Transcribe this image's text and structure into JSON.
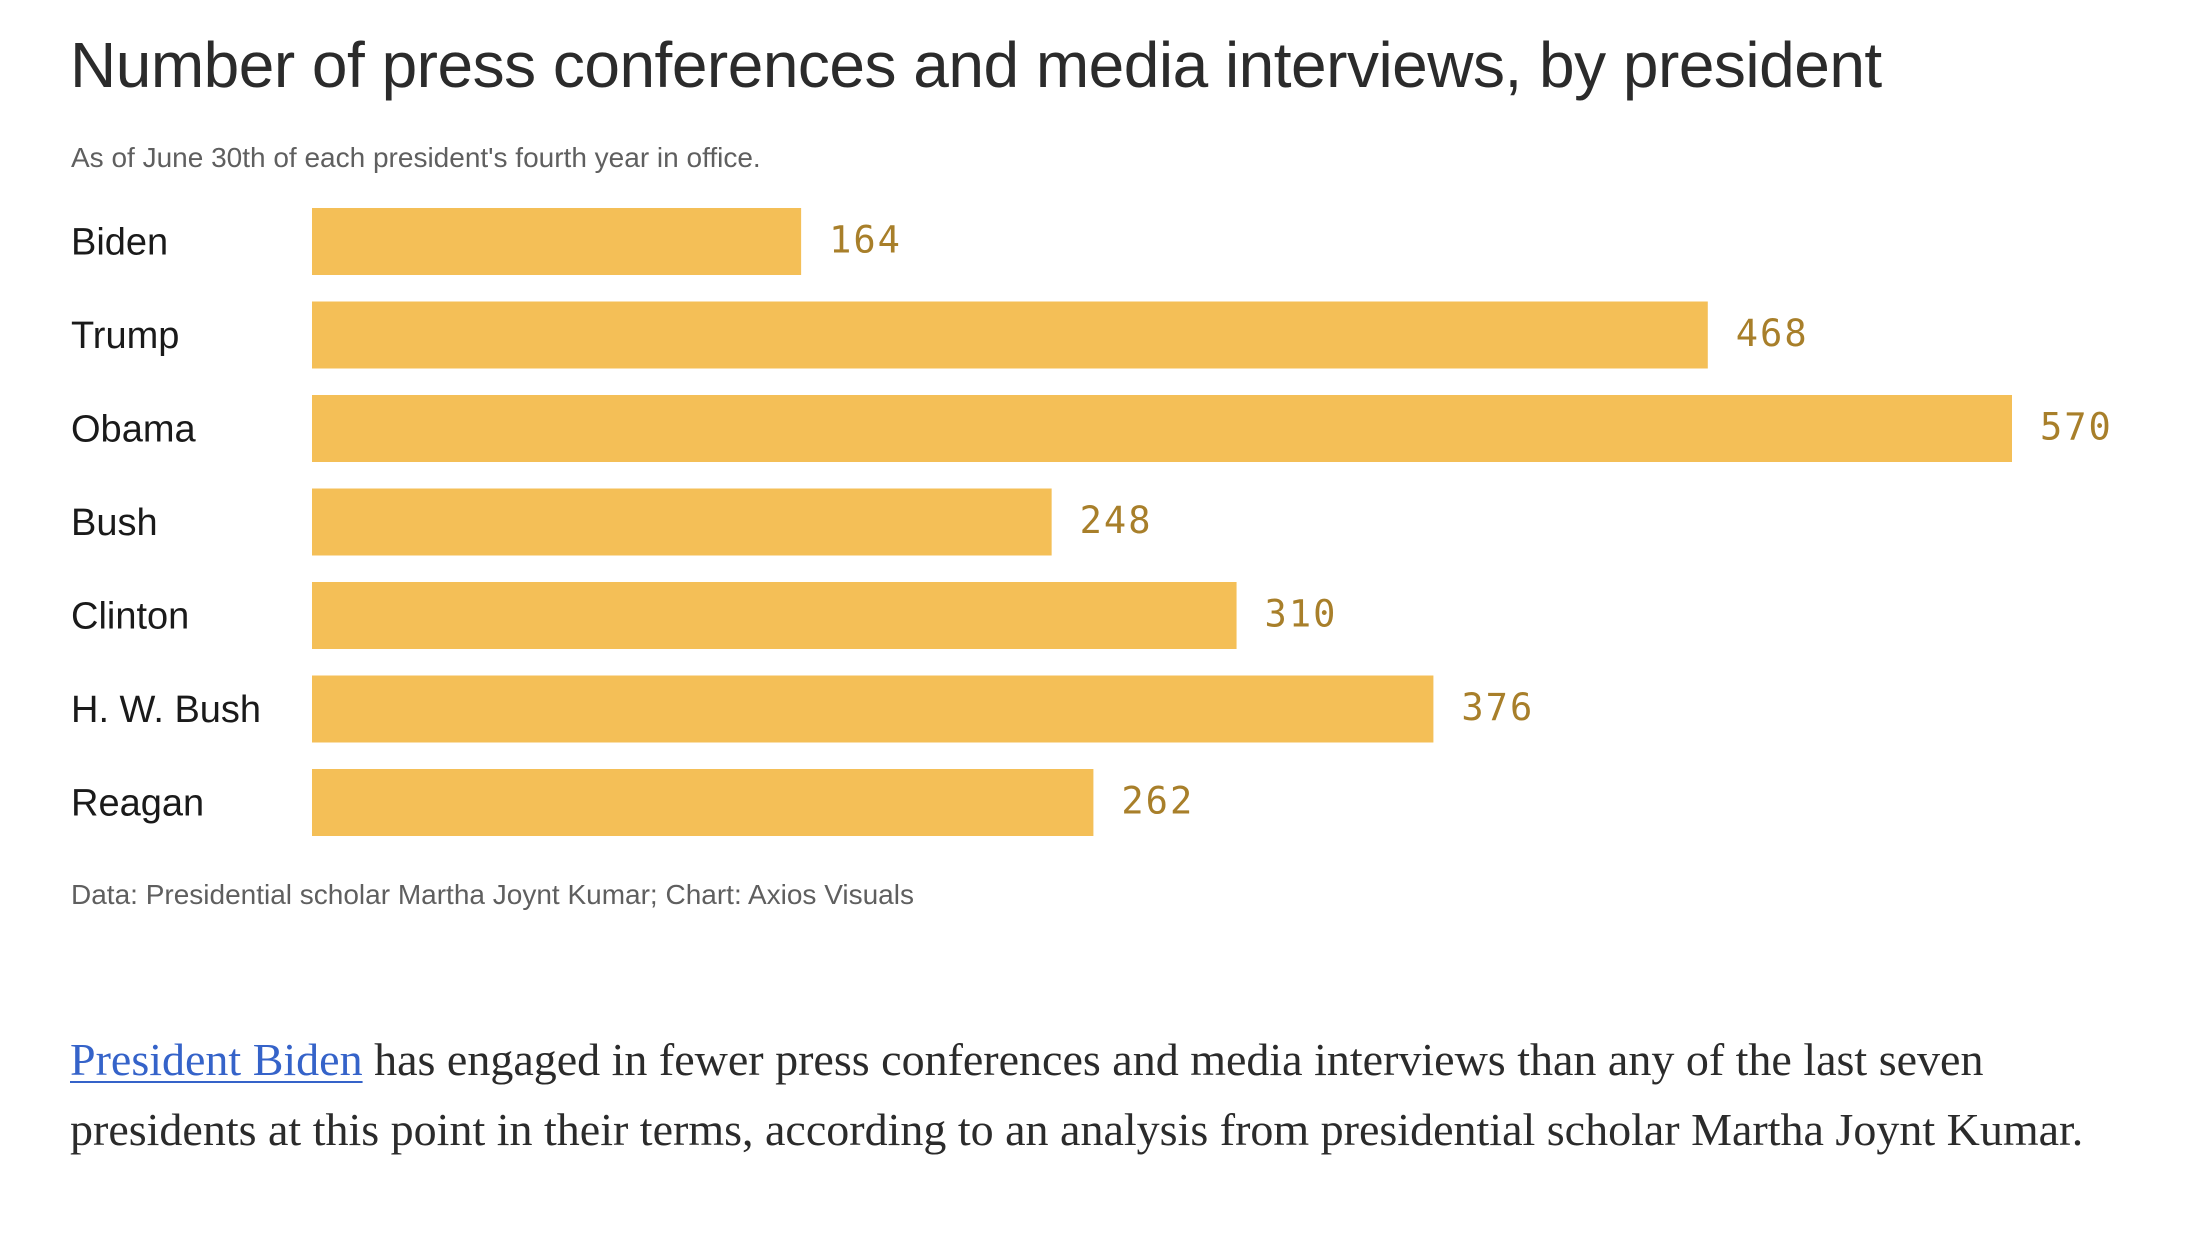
{
  "chart_data": {
    "type": "bar",
    "orientation": "horizontal",
    "title": "Number of press conferences and media interviews, by president",
    "subtitle": "As of June 30th of each president's fourth year in office.",
    "categories": [
      "Biden",
      "Trump",
      "Obama",
      "Bush",
      "Clinton",
      "H. W. Bush",
      "Reagan"
    ],
    "values": [
      164,
      468,
      570,
      248,
      310,
      376,
      262
    ],
    "xlim": [
      0,
      570
    ],
    "grid": false,
    "bar_color": "#f4bf57",
    "value_label_color": "#a87f2a",
    "source": "Data: Presidential scholar Martha Joynt Kumar; Chart: Axios Visuals"
  },
  "article": {
    "link_text": "President Biden",
    "body": " has engaged in fewer press conferences and media interviews than any of the last seven presidents at this point in their terms, according to an analysis from presidential scholar Martha Joynt Kumar."
  }
}
